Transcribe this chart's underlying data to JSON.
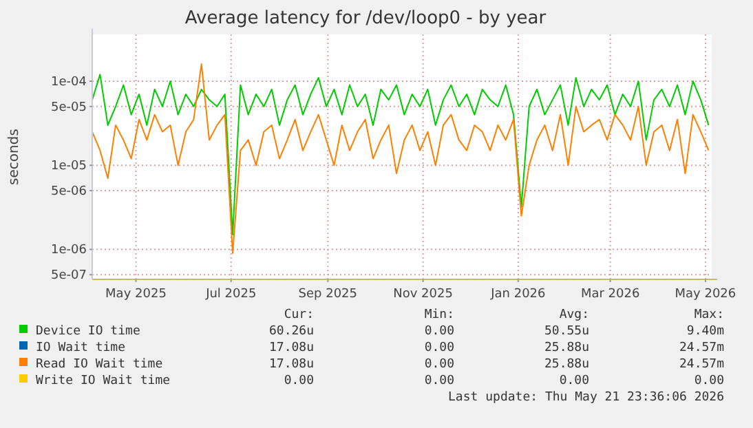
{
  "chart_data": {
    "type": "line",
    "title": "Average latency for /dev/loop0 - by year",
    "ylabel": "seconds",
    "log": "y",
    "grid": true,
    "legend": "bottom",
    "marker": "none",
    "line_style": "solid",
    "xlim": [
      "2025-04-03",
      "2026-05-05"
    ],
    "xticks": [
      {
        "value": "2025-05-01",
        "label": "May 2025"
      },
      {
        "value": "2025-07-01",
        "label": "Jul 2025"
      },
      {
        "value": "2025-09-01",
        "label": "Sep 2025"
      },
      {
        "value": "2025-11-01",
        "label": "Nov 2025"
      },
      {
        "value": "2026-01-01",
        "label": "Jan 2026"
      },
      {
        "value": "2026-03-01",
        "label": "Mar 2026"
      },
      {
        "value": "2026-05-01",
        "label": "May 2026"
      }
    ],
    "ylim": [
      4.4e-07,
      0.00036
    ],
    "yticks": [
      {
        "value": 5e-07,
        "label": "5e-07"
      },
      {
        "value": 1e-06,
        "label": "1e-06"
      },
      {
        "value": 5e-06,
        "label": "5e-06"
      },
      {
        "value": 1e-05,
        "label": "1e-05"
      },
      {
        "value": 5e-05,
        "label": "5e-05"
      },
      {
        "value": 0.0001,
        "label": "1e-04"
      }
    ],
    "x": [
      "2025-04-03",
      "2025-04-08",
      "2025-04-13",
      "2025-04-18",
      "2025-04-23",
      "2025-04-28",
      "2025-05-03",
      "2025-05-08",
      "2025-05-13",
      "2025-05-18",
      "2025-05-23",
      "2025-05-28",
      "2025-06-02",
      "2025-06-07",
      "2025-06-12",
      "2025-06-17",
      "2025-06-22",
      "2025-06-27",
      "2025-07-02",
      "2025-07-07",
      "2025-07-12",
      "2025-07-17",
      "2025-07-22",
      "2025-07-27",
      "2025-08-01",
      "2025-08-06",
      "2025-08-11",
      "2025-08-16",
      "2025-08-21",
      "2025-08-26",
      "2025-08-31",
      "2025-09-05",
      "2025-09-10",
      "2025-09-15",
      "2025-09-20",
      "2025-09-25",
      "2025-09-30",
      "2025-10-05",
      "2025-10-10",
      "2025-10-15",
      "2025-10-20",
      "2025-10-25",
      "2025-10-30",
      "2025-11-04",
      "2025-11-09",
      "2025-11-14",
      "2025-11-19",
      "2025-11-24",
      "2025-11-29",
      "2025-12-04",
      "2025-12-09",
      "2025-12-14",
      "2025-12-19",
      "2025-12-24",
      "2025-12-29",
      "2026-01-03",
      "2026-01-08",
      "2026-01-13",
      "2026-01-18",
      "2026-01-23",
      "2026-01-28",
      "2026-02-02",
      "2026-02-07",
      "2026-02-12",
      "2026-02-17",
      "2026-02-22",
      "2026-02-27",
      "2026-03-04",
      "2026-03-09",
      "2026-03-14",
      "2026-03-19",
      "2026-03-24",
      "2026-03-29",
      "2026-04-03",
      "2026-04-08",
      "2026-04-13",
      "2026-04-18",
      "2026-04-23",
      "2026-04-28",
      "2026-05-03"
    ],
    "series": [
      {
        "name": "Device IO time",
        "color": "#00cc00",
        "values": [
          6e-05,
          0.00012,
          3e-05,
          5e-05,
          9e-05,
          4e-05,
          7e-05,
          3e-05,
          8e-05,
          5e-05,
          0.0001,
          4e-05,
          7e-05,
          5e-05,
          8e-05,
          6e-05,
          5e-05,
          7e-05,
          1.5e-06,
          9e-05,
          4e-05,
          7e-05,
          5e-05,
          8e-05,
          3e-05,
          6e-05,
          9e-05,
          4e-05,
          7e-05,
          0.00011,
          5e-05,
          8e-05,
          4e-05,
          9e-05,
          5e-05,
          7e-05,
          3e-05,
          8e-05,
          6e-05,
          9e-05,
          4e-05,
          7e-05,
          5e-05,
          8e-05,
          3e-05,
          6e-05,
          9e-05,
          5e-05,
          7e-05,
          4e-05,
          8e-05,
          6e-05,
          5e-05,
          9e-05,
          4e-05,
          3.2e-06,
          5e-05,
          8e-05,
          4e-05,
          6e-05,
          9e-05,
          3e-05,
          0.00011,
          5e-05,
          8e-05,
          6e-05,
          9e-05,
          4e-05,
          7e-05,
          5e-05,
          0.0001,
          2e-05,
          6e-05,
          8e-05,
          5e-05,
          9e-05,
          4e-05,
          0.0001,
          6e-05,
          3e-05
        ]
      },
      {
        "name": "IO Wait time",
        "color": "#0066b3",
        "values": [
          null,
          null,
          null,
          null,
          null,
          null,
          null,
          null,
          null,
          null,
          null,
          null,
          null,
          null,
          null,
          null,
          null,
          null,
          null,
          null,
          null,
          null,
          null,
          null,
          null,
          null,
          null,
          null,
          null,
          null,
          null,
          null,
          null,
          null,
          null,
          null,
          null,
          null,
          null,
          null,
          null,
          null,
          null,
          null,
          null,
          null,
          null,
          null,
          null,
          null,
          null,
          null,
          null,
          null,
          null,
          null,
          null,
          null,
          null,
          null,
          null,
          null,
          null,
          null,
          null,
          null,
          null,
          null,
          null,
          null,
          null,
          null,
          null,
          null,
          null,
          null,
          null,
          null,
          null,
          null
        ]
      },
      {
        "name": "Read IO Wait time",
        "color": "#ff8000",
        "values": [
          2.5e-05,
          1.5e-05,
          7e-06,
          3e-05,
          2e-05,
          1.2e-05,
          3.5e-05,
          2e-05,
          4e-05,
          2.5e-05,
          3e-05,
          1e-05,
          2.5e-05,
          3.5e-05,
          0.00016,
          2e-05,
          3e-05,
          4e-05,
          9e-07,
          1.5e-05,
          2e-05,
          1e-05,
          2.5e-05,
          3e-05,
          1.2e-05,
          2e-05,
          3.5e-05,
          1.5e-05,
          2.5e-05,
          4e-05,
          2e-05,
          1e-05,
          3e-05,
          1.5e-05,
          2.5e-05,
          3.5e-05,
          1.2e-05,
          2e-05,
          3e-05,
          8e-06,
          2e-05,
          3e-05,
          1.5e-05,
          2.5e-05,
          1e-05,
          3e-05,
          4e-05,
          2e-05,
          1.5e-05,
          3e-05,
          2.5e-05,
          1.5e-05,
          3e-05,
          2e-05,
          3.5e-05,
          2.5e-06,
          1e-05,
          2e-05,
          3e-05,
          1.5e-05,
          4e-05,
          1e-05,
          5e-05,
          2.5e-05,
          3e-05,
          3.5e-05,
          2e-05,
          4e-05,
          3e-05,
          2e-05,
          5e-05,
          1e-05,
          2.5e-05,
          3e-05,
          1.5e-05,
          3.5e-05,
          8e-06,
          4e-05,
          2.5e-05,
          1.5e-05
        ]
      },
      {
        "name": "Write IO Wait time",
        "color": "#ffcc00",
        "values": [
          null,
          null,
          null,
          null,
          null,
          null,
          null,
          null,
          null,
          null,
          null,
          null,
          null,
          null,
          null,
          null,
          null,
          null,
          null,
          null,
          null,
          null,
          null,
          null,
          null,
          null,
          null,
          null,
          null,
          null,
          null,
          null,
          null,
          null,
          null,
          null,
          null,
          null,
          null,
          null,
          null,
          null,
          null,
          null,
          null,
          null,
          null,
          null,
          null,
          null,
          null,
          null,
          null,
          null,
          null,
          null,
          null,
          null,
          null,
          null,
          null,
          null,
          null,
          null,
          null,
          null,
          null,
          null,
          null,
          null,
          null,
          null,
          null,
          null,
          null,
          null,
          null,
          null,
          null,
          null
        ]
      }
    ],
    "annotations": [
      "Cur:",
      "Min:",
      "Avg:",
      "Max:",
      "60.26u",
      "0.00",
      "50.55u",
      "9.40m",
      "17.08u",
      "0.00",
      "25.88u",
      "24.57m",
      "17.08u",
      "0.00",
      "25.88u",
      "24.57m",
      "0.00",
      "0.00",
      "0.00",
      "0.00",
      "Last update: Thu May 21 23:36:06 2026"
    ]
  }
}
